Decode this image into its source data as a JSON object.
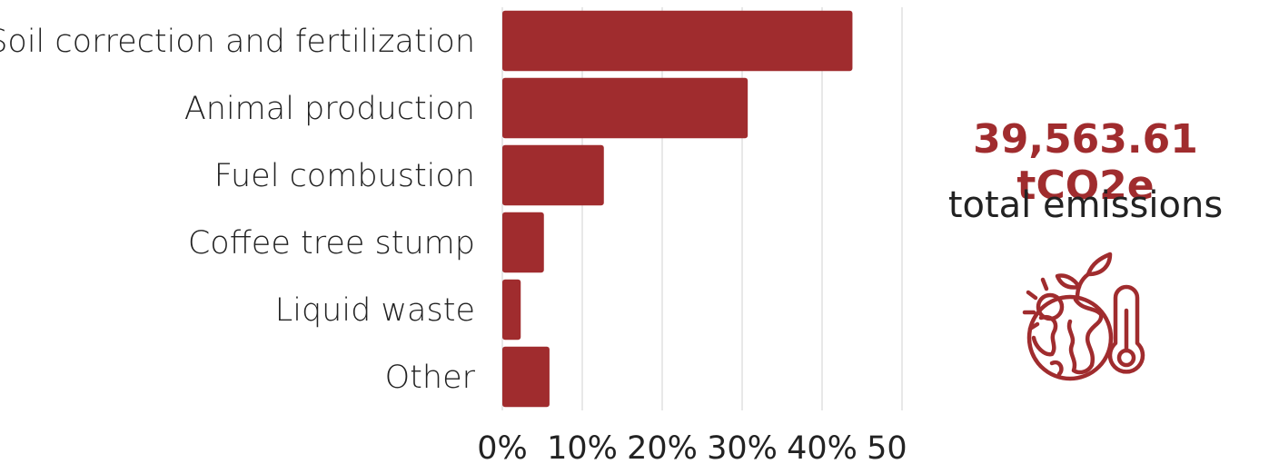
{
  "chart_data": {
    "type": "bar",
    "orientation": "horizontal",
    "categories": [
      "Soil correction and fertilization",
      "Animal production",
      "Fuel combustion",
      "Coffee tree stump",
      "Liquid waste",
      "Other"
    ],
    "values": [
      43.8,
      30.7,
      12.7,
      5.2,
      2.3,
      5.9
    ],
    "value_unit": "%",
    "xlim": [
      0,
      50
    ],
    "x_ticks": [
      "0%",
      "10%",
      "20%",
      "30%",
      "40%",
      "50%"
    ],
    "grid": "vertical",
    "bar_color": "#a02c2e"
  },
  "summary": {
    "total_value": "39,563.61 tCO2e",
    "total_caption": "total emissions",
    "accent_color": "#a02c2e",
    "icon": "global-warming-icon"
  }
}
